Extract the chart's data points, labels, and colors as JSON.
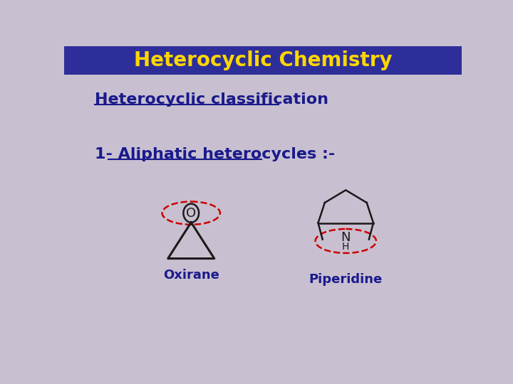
{
  "title": "Heterocyclic Chemistry",
  "title_color": "#FFD700",
  "title_bg_color": "#2E2E9A",
  "bg_color": "#C8C0D0",
  "text_color": "#1A1A8C",
  "heading1": "Heterocyclic classification",
  "heading2": "1- Aliphatic heterocycles :-",
  "label_oxirane": "Oxirane",
  "label_piperidine": "Piperidine",
  "ellipse_color": "#CC0000",
  "structure_color": "#1A1A1A"
}
